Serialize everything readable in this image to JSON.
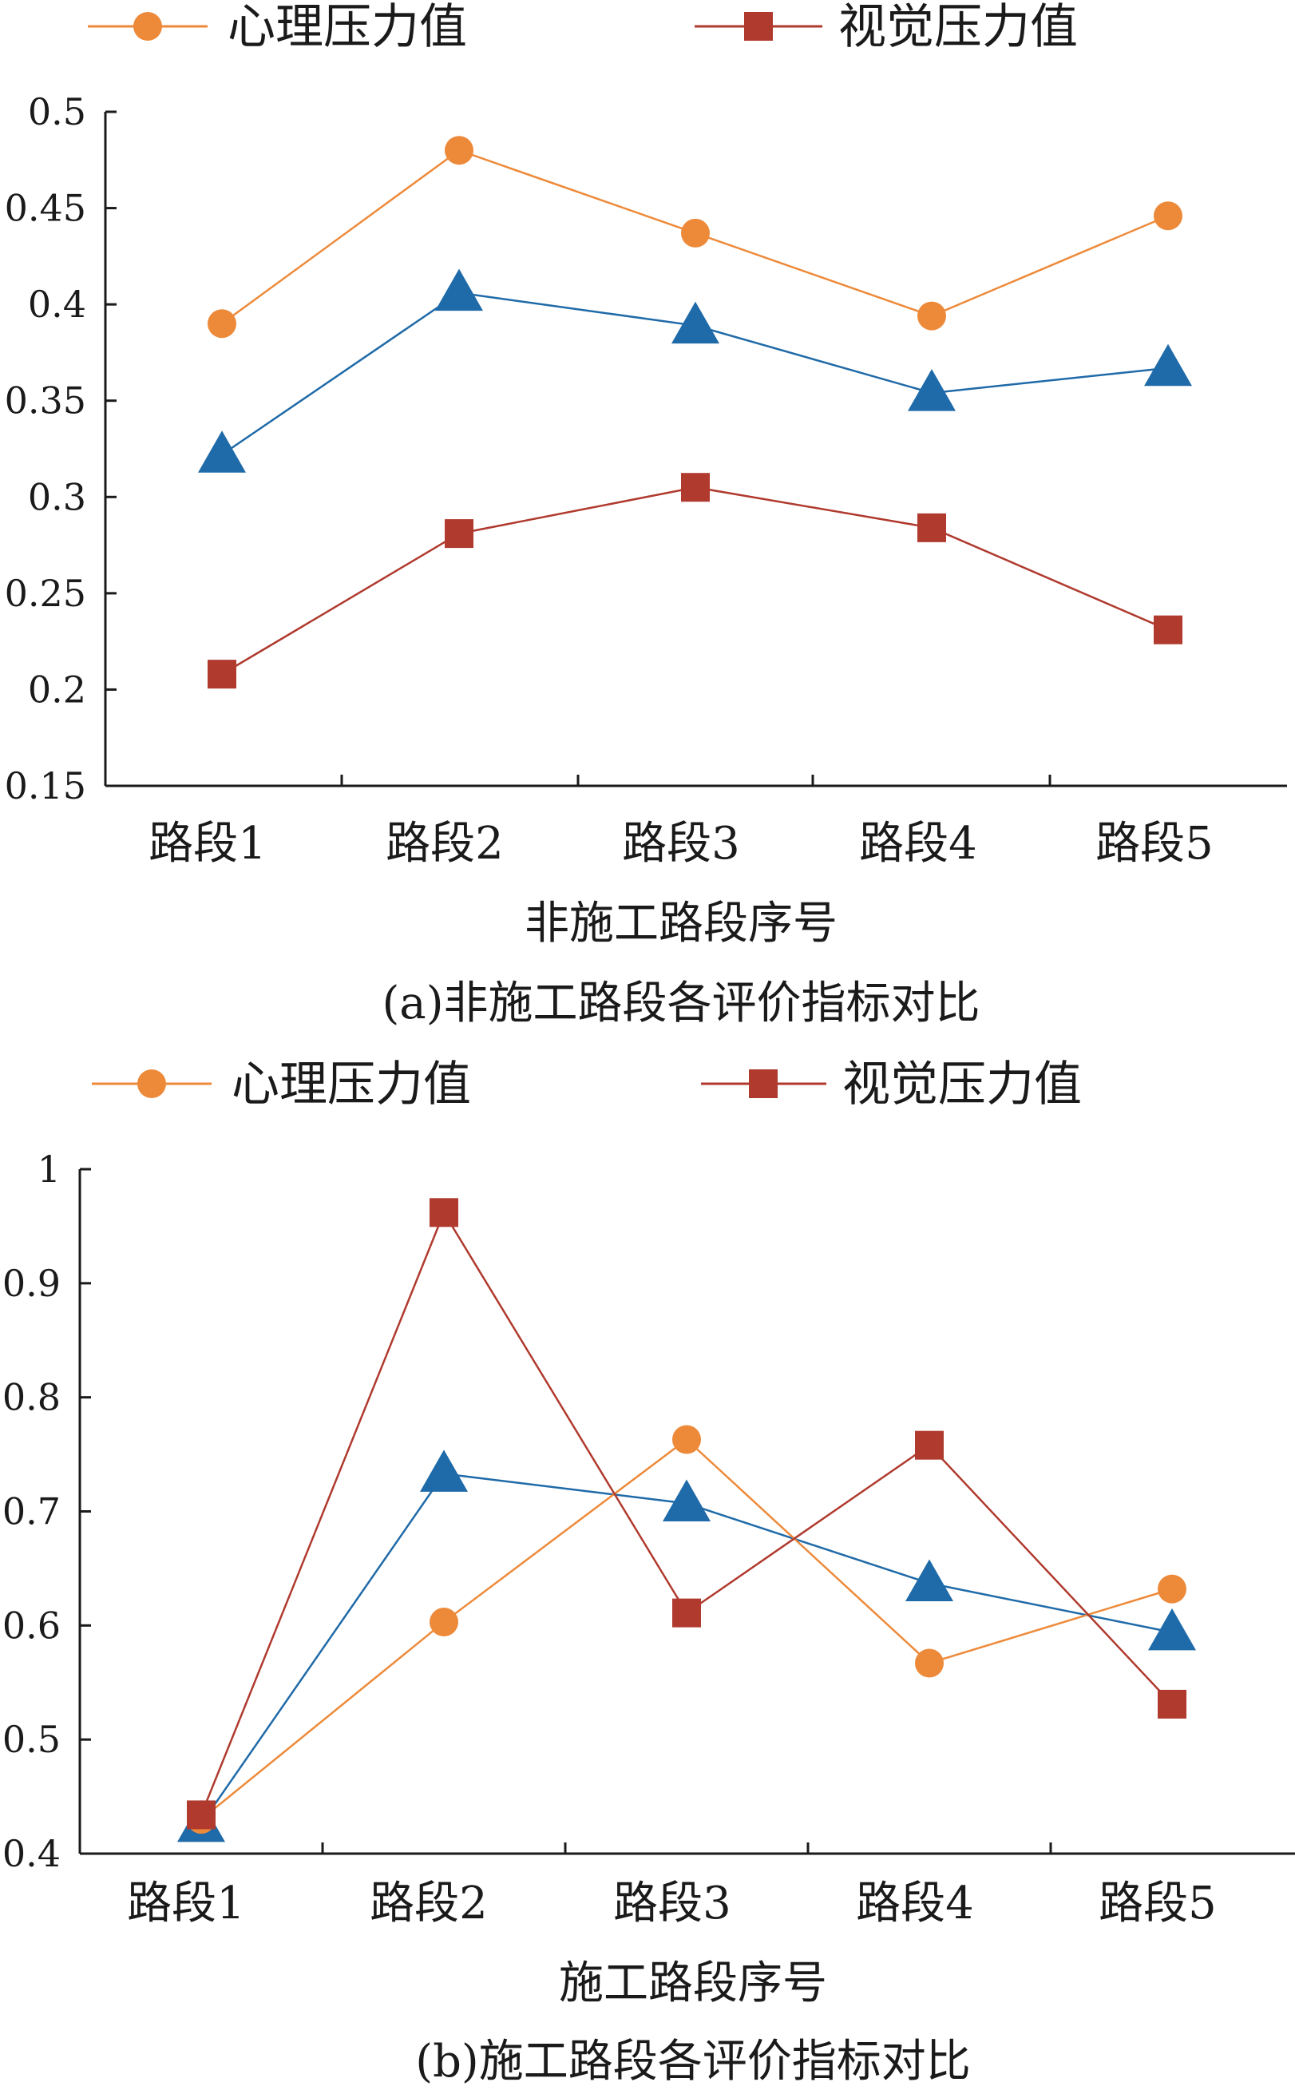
{
  "chart_data": [
    {
      "type": "line",
      "caption": "(a)非施工路段各评价指标对比",
      "xlabel": "非施工路段序号",
      "ylabel": "",
      "categories": [
        "路段1",
        "路段2",
        "路段3",
        "路段4",
        "路段5"
      ],
      "ylim": [
        0.15,
        0.5
      ],
      "yticks": [
        0.15,
        0.2,
        0.25,
        0.3,
        0.35,
        0.4,
        0.45,
        0.5
      ],
      "ytick_labels": [
        "0.15",
        "0.2",
        "0.25",
        "0.3",
        "0.35",
        "0.4",
        "0.45",
        "0.5"
      ],
      "grid": false,
      "legend_position": "top",
      "series": [
        {
          "name": "心理压力值",
          "marker": "circle",
          "color": "#ED8A3A",
          "values": [
            0.39,
            0.48,
            0.437,
            0.394,
            0.446
          ]
        },
        {
          "name": "视觉压力值",
          "marker": "square",
          "color": "#B03A2E",
          "values": [
            0.208,
            0.281,
            0.305,
            0.284,
            0.231
          ]
        },
        {
          "name": "",
          "marker": "triangle",
          "color": "#1F6AA8",
          "values": [
            0.322,
            0.406,
            0.389,
            0.354,
            0.367
          ]
        }
      ]
    },
    {
      "type": "line",
      "caption": "(b)施工路段各评价指标对比",
      "xlabel": "施工路段序号",
      "ylabel": "",
      "categories": [
        "路段1",
        "路段2",
        "路段3",
        "路段4",
        "路段5"
      ],
      "ylim": [
        0.4,
        1.0
      ],
      "yticks": [
        0.4,
        0.5,
        0.6,
        0.7,
        0.8,
        0.9,
        1.0
      ],
      "ytick_labels": [
        "0.4",
        "0.5",
        "0.6",
        "0.7",
        "0.8",
        "0.9",
        "1"
      ],
      "grid": false,
      "legend_position": "top",
      "series": [
        {
          "name": "心理压力值",
          "marker": "circle",
          "color": "#ED8A3A",
          "values": [
            0.43,
            0.603,
            0.763,
            0.567,
            0.632
          ]
        },
        {
          "name": "视觉压力值",
          "marker": "square",
          "color": "#B03A2E",
          "values": [
            0.434,
            0.962,
            0.611,
            0.758,
            0.531
          ]
        },
        {
          "name": "",
          "marker": "triangle",
          "color": "#1F6AA8",
          "values": [
            0.426,
            0.733,
            0.707,
            0.637,
            0.594
          ]
        }
      ]
    }
  ]
}
